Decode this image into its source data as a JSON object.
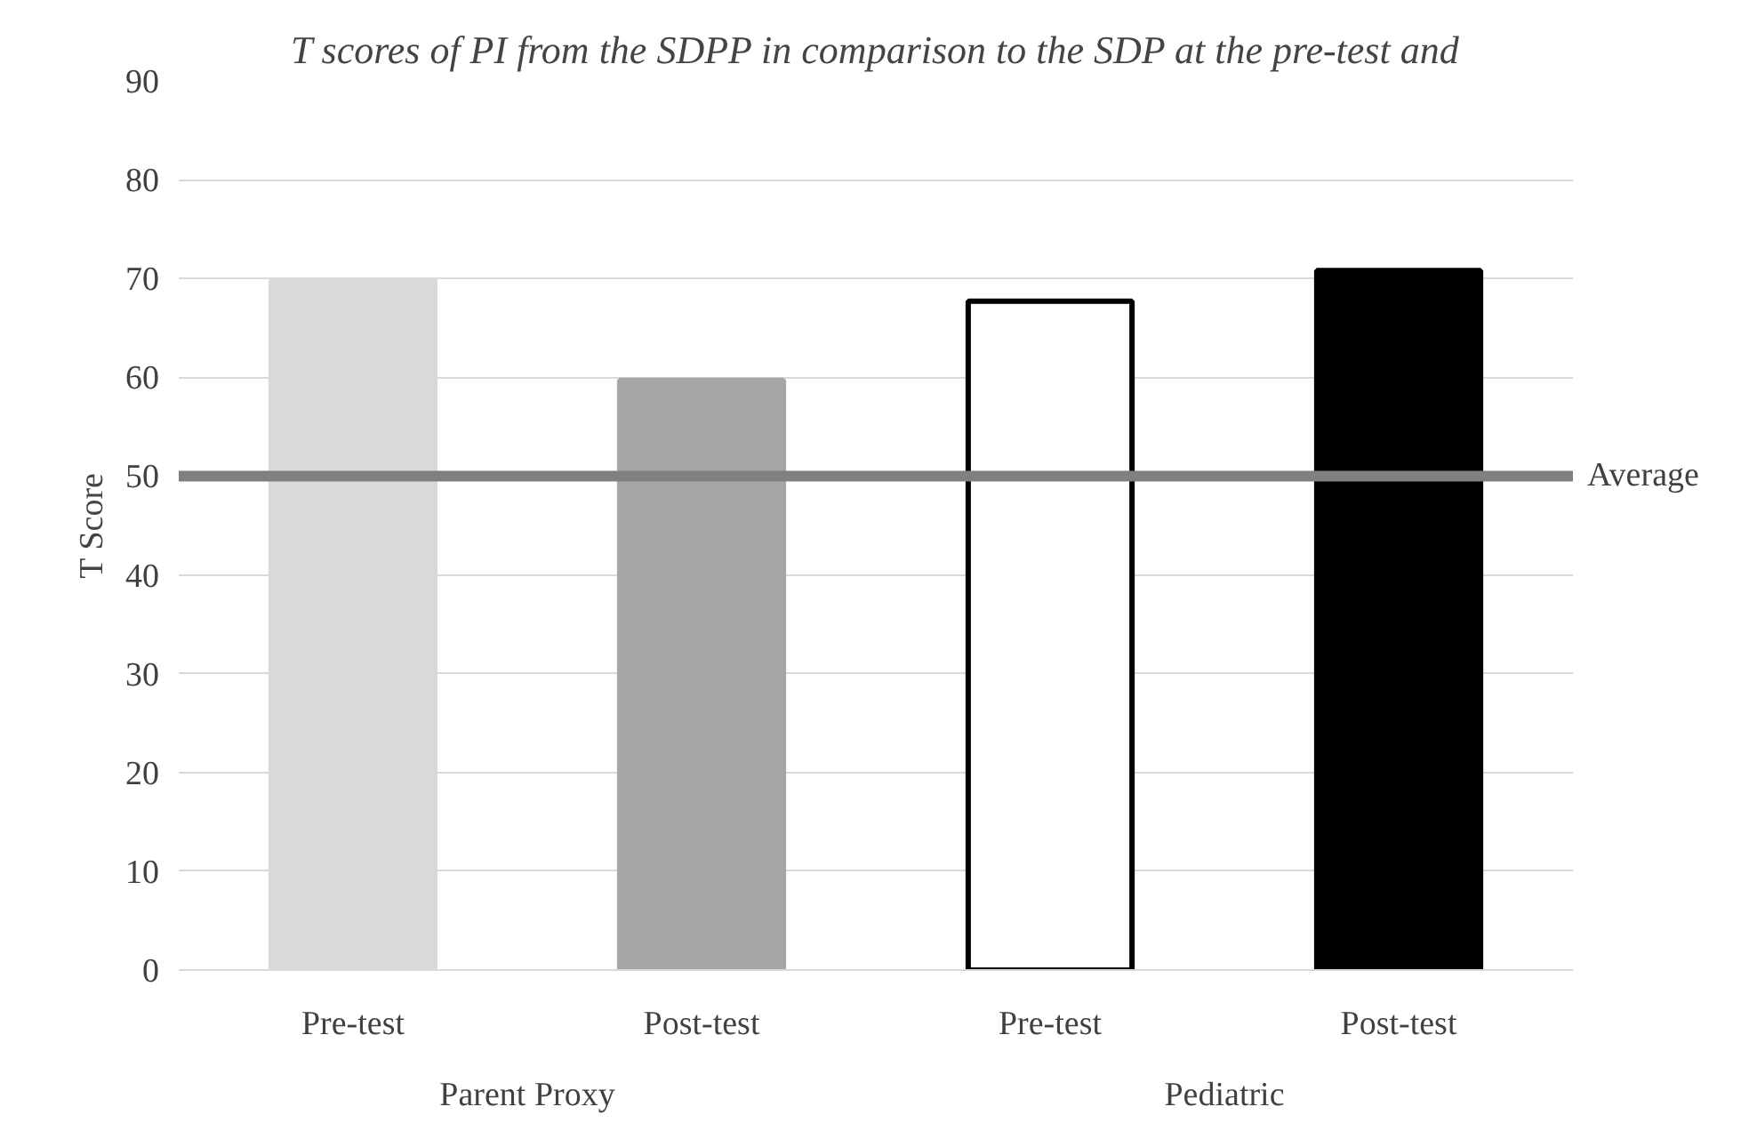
{
  "chart_data": {
    "type": "bar",
    "title": "T scores of PI from the SDPP in comparison to the SDP at the pre-test and",
    "ylabel": "T Score",
    "categories": [
      "Pre-test",
      "Post-test",
      "Pre-test",
      "Post-test"
    ],
    "values": [
      69.8,
      59.7,
      67.7,
      70.8
    ],
    "colors": [
      "#d9d9d9",
      "#a6a6a6",
      "#ffffff",
      "#000000"
    ],
    "ylim": [
      0,
      90
    ],
    "yticks": [
      0,
      10,
      20,
      30,
      40,
      50,
      60,
      70,
      80,
      90
    ],
    "grid": "y",
    "ref_lines": [
      {
        "axis": "y",
        "value": 50,
        "label": "Average",
        "color": "#808080"
      }
    ],
    "annotations": [
      "Parent Proxy",
      "Pediatric"
    ]
  }
}
